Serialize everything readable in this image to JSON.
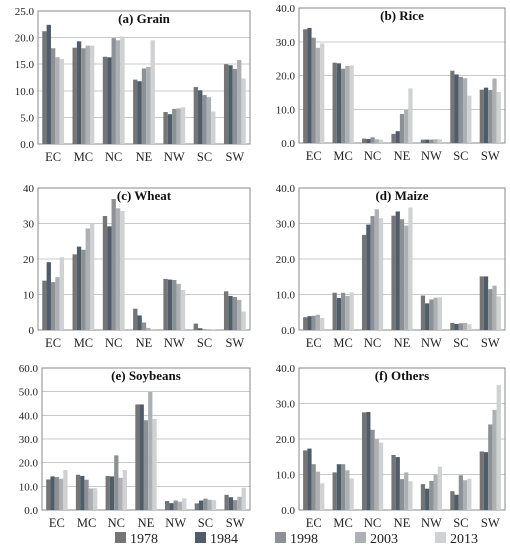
{
  "chart_data": [
    {
      "type": "bar",
      "title": "(a) Grain",
      "categories": [
        "EC",
        "MC",
        "NC",
        "NE",
        "NW",
        "SC",
        "SW"
      ],
      "ylim": [
        0,
        25
      ],
      "yticks": [
        "0.0",
        "5.0",
        "10.0",
        "15.0",
        "20.0",
        "25.0"
      ],
      "grid": true,
      "series": [
        {
          "name": "1978",
          "values": [
            21.2,
            18.1,
            16.4,
            12.1,
            6.0,
            10.7,
            15.0
          ]
        },
        {
          "name": "1984",
          "values": [
            22.4,
            19.3,
            16.3,
            11.8,
            5.6,
            10.1,
            14.8
          ]
        },
        {
          "name": "1998",
          "values": [
            18.0,
            18.0,
            19.9,
            14.2,
            6.6,
            9.2,
            14.1
          ]
        },
        {
          "name": "2003",
          "values": [
            16.3,
            18.5,
            19.5,
            14.5,
            6.7,
            8.8,
            15.8
          ]
        },
        {
          "name": "2013",
          "values": [
            16.0,
            18.5,
            20.2,
            19.5,
            6.9,
            6.1,
            12.3
          ]
        }
      ]
    },
    {
      "type": "bar",
      "title": "(b) Rice",
      "categories": [
        "EC",
        "MC",
        "NC",
        "NE",
        "NW",
        "SC",
        "SW"
      ],
      "ylim": [
        0,
        40
      ],
      "yticks": [
        "0.0",
        "10.0",
        "20.0",
        "30.0",
        "40.0"
      ],
      "grid": true,
      "series": [
        {
          "name": "1978",
          "values": [
            33.7,
            23.8,
            1.3,
            2.7,
            1.0,
            21.4,
            15.8
          ]
        },
        {
          "name": "1984",
          "values": [
            34.1,
            23.6,
            1.2,
            3.5,
            1.0,
            20.3,
            16.4
          ]
        },
        {
          "name": "1998",
          "values": [
            31.2,
            22.0,
            1.7,
            8.6,
            1.0,
            19.6,
            15.7
          ]
        },
        {
          "name": "2003",
          "values": [
            28.2,
            22.8,
            1.1,
            9.8,
            1.1,
            19.2,
            19.1
          ]
        },
        {
          "name": "2013",
          "values": [
            29.5,
            23.0,
            1.0,
            16.2,
            1.1,
            14.0,
            15.1
          ]
        }
      ]
    },
    {
      "type": "bar",
      "title": "(c) Wheat",
      "categories": [
        "EC",
        "MC",
        "NC",
        "NE",
        "NW",
        "SC",
        "SW"
      ],
      "ylim": [
        0,
        40
      ],
      "yticks": [
        "0",
        "10",
        "20",
        "30",
        "40"
      ],
      "grid": true,
      "series": [
        {
          "name": "1978",
          "values": [
            13.9,
            21.3,
            32.1,
            6.0,
            14.4,
            1.8,
            10.9
          ]
        },
        {
          "name": "1984",
          "values": [
            19.1,
            23.5,
            29.2,
            4.1,
            14.2,
            0.5,
            9.6
          ]
        },
        {
          "name": "1998",
          "values": [
            13.5,
            22.6,
            36.9,
            2.1,
            14.1,
            0.2,
            9.3
          ]
        },
        {
          "name": "2003",
          "values": [
            14.9,
            28.6,
            34.3,
            0.6,
            13.0,
            0.2,
            8.5
          ]
        },
        {
          "name": "2013",
          "values": [
            20.5,
            29.9,
            33.5,
            0.3,
            11.3,
            0.1,
            5.2
          ]
        }
      ]
    },
    {
      "type": "bar",
      "title": "(d) Maize",
      "categories": [
        "EC",
        "MC",
        "NC",
        "NE",
        "NW",
        "SC",
        "SW"
      ],
      "ylim": [
        0,
        40
      ],
      "yticks": [
        "0.0",
        "10.0",
        "20.0",
        "30.0",
        "40.0"
      ],
      "grid": true,
      "series": [
        {
          "name": "1978",
          "values": [
            3.6,
            10.5,
            26.8,
            32.2,
            9.7,
            2.0,
            15.1
          ]
        },
        {
          "name": "1984",
          "values": [
            3.9,
            9.0,
            29.7,
            33.4,
            7.5,
            1.7,
            15.1
          ]
        },
        {
          "name": "1998",
          "values": [
            4.0,
            10.5,
            32.1,
            31.2,
            8.6,
            1.9,
            11.5
          ]
        },
        {
          "name": "2003",
          "values": [
            4.3,
            9.6,
            34.0,
            29.4,
            9.1,
            2.0,
            12.5
          ]
        },
        {
          "name": "2013",
          "values": [
            3.4,
            10.6,
            31.5,
            34.5,
            9.2,
            1.6,
            9.5
          ]
        }
      ]
    },
    {
      "type": "bar",
      "title": "(e) Soybeans",
      "categories": [
        "EC",
        "MC",
        "NC",
        "NE",
        "NW",
        "SC",
        "SW"
      ],
      "ylim": [
        0,
        60
      ],
      "yticks": [
        "0.0",
        "10.0",
        "20.0",
        "30.0",
        "40.0",
        "50.0",
        "60.0"
      ],
      "grid": true,
      "series": [
        {
          "name": "1978",
          "values": [
            12.9,
            14.9,
            14.4,
            44.6,
            3.8,
            2.8,
            6.4
          ]
        },
        {
          "name": "1984",
          "values": [
            14.2,
            14.4,
            14.2,
            44.6,
            2.9,
            4.0,
            5.4
          ]
        },
        {
          "name": "1998",
          "values": [
            13.9,
            12.8,
            23.1,
            37.9,
            4.0,
            4.8,
            4.2
          ]
        },
        {
          "name": "2003",
          "values": [
            13.2,
            9.1,
            13.6,
            49.9,
            3.5,
            4.3,
            5.6
          ]
        },
        {
          "name": "2013",
          "values": [
            16.9,
            9.2,
            16.9,
            38.5,
            4.9,
            4.2,
            9.4
          ]
        }
      ]
    },
    {
      "type": "bar",
      "title": "(f) Others",
      "categories": [
        "EC",
        "MC",
        "NC",
        "NE",
        "NW",
        "SC",
        "SW"
      ],
      "ylim": [
        0,
        40
      ],
      "yticks": [
        "0.0",
        "10.0",
        "20.0",
        "30.0",
        "40.0"
      ],
      "grid": true,
      "series": [
        {
          "name": "1978",
          "values": [
            16.8,
            10.6,
            27.5,
            15.5,
            7.3,
            5.3,
            16.5
          ]
        },
        {
          "name": "1984",
          "values": [
            17.3,
            12.9,
            27.6,
            14.9,
            6.0,
            4.3,
            16.3
          ]
        },
        {
          "name": "1998",
          "values": [
            12.9,
            12.9,
            22.6,
            8.7,
            8.2,
            9.8,
            24.1
          ]
        },
        {
          "name": "2003",
          "values": [
            10.8,
            11.2,
            20.0,
            10.6,
            9.9,
            8.4,
            28.2
          ]
        },
        {
          "name": "2013",
          "values": [
            7.5,
            8.9,
            19.0,
            8.1,
            12.2,
            8.8,
            35.2
          ]
        }
      ]
    }
  ],
  "legend": {
    "placement": "bottom",
    "items": [
      {
        "label": "1978",
        "color": "#757575"
      },
      {
        "label": "1984",
        "color": "#4f5d6a"
      },
      {
        "label": "1998",
        "color": "#8c9196"
      },
      {
        "label": "2003",
        "color": "#adb1b5"
      },
      {
        "label": "2013",
        "color": "#cfd1d3"
      }
    ]
  }
}
